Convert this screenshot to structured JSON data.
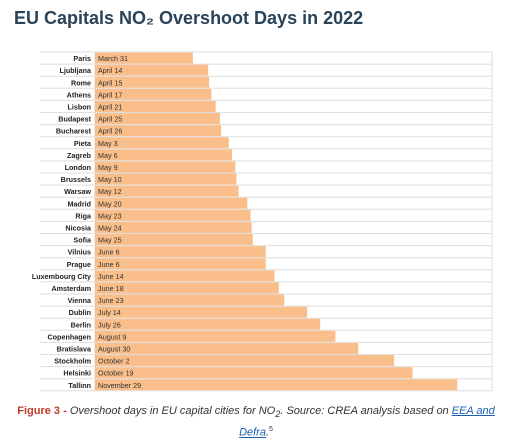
{
  "title": "EU Capitals NO₂ Overshoot Days in 2022",
  "caption": {
    "figure_label": "Figure 3 -",
    "text": "Overshoot days in EU capital cities for NO",
    "subscript": "2",
    "source": ". Source: CREA analysis based on",
    "link1": "EEA and",
    "link2": "Defra",
    "end": ".",
    "footnote": "5"
  },
  "colors": {
    "bar": "#f9be8a",
    "grid": "#dedede",
    "label": "#222222"
  },
  "chart_data": {
    "type": "bar",
    "orientation": "horizontal",
    "categories": [
      "Paris",
      "Ljubljana",
      "Rome",
      "Athens",
      "Lisbon",
      "Budapest",
      "Bucharest",
      "Pieta",
      "Zagreb",
      "London",
      "Brussels",
      "Warsaw",
      "Madrid",
      "Riga",
      "Nicosia",
      "Sofia",
      "Vilnius",
      "Prague",
      "Luxembourg City",
      "Amsterdam",
      "Vienna",
      "Dublin",
      "Berlin",
      "Copenhagen",
      "Bratislava",
      "Stockholm",
      "Helsinki",
      "Tallinn"
    ],
    "labels": [
      "March 31",
      "April 14",
      "April 15",
      "April 17",
      "April 21",
      "April 25",
      "April 26",
      "May 3",
      "May 6",
      "May 9",
      "May 10",
      "May 12",
      "May 20",
      "May 23",
      "May 24",
      "May 25",
      "June 6",
      "June 6",
      "June 14",
      "June 18",
      "June 23",
      "July 14",
      "July 26",
      "August 9",
      "August 30",
      "October 2",
      "October 19",
      "November 29"
    ],
    "values": [
      "2022-03-31",
      "2022-04-14",
      "2022-04-15",
      "2022-04-17",
      "2022-04-21",
      "2022-04-25",
      "2022-04-26",
      "2022-05-03",
      "2022-05-06",
      "2022-05-09",
      "2022-05-10",
      "2022-05-12",
      "2022-05-20",
      "2022-05-23",
      "2022-05-24",
      "2022-05-25",
      "2022-06-06",
      "2022-06-06",
      "2022-06-14",
      "2022-06-18",
      "2022-06-23",
      "2022-07-14",
      "2022-07-26",
      "2022-08-09",
      "2022-08-30",
      "2022-10-02",
      "2022-10-19",
      "2022-11-29"
    ],
    "xlim": [
      "2022-01-01",
      "2022-12-31"
    ],
    "grid": true,
    "xlabel": "",
    "ylabel": ""
  }
}
